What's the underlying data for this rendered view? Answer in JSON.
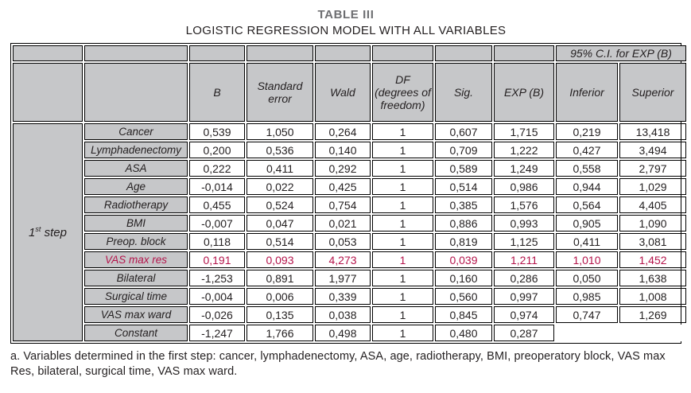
{
  "title": "TABLE III",
  "subtitle": "LOGISTIC REGRESSION MODEL WITH ALL VARIABLES",
  "colors": {
    "header_bg": "#c6c7c9",
    "highlight": "#b5144b",
    "title_gray": "#6d6e71"
  },
  "table": {
    "ci_header": "95% C.I. for EXP (B)",
    "step": {
      "prefix": "1",
      "sup": "st",
      "suffix": " step"
    },
    "columns": [
      "B",
      "Standard error",
      "Wald",
      "DF (degrees of freedom)",
      "Sig.",
      "EXP (B)",
      "Inferior",
      "Superior"
    ],
    "rows": [
      {
        "variable": "Cancer",
        "highlight": false,
        "values": [
          "0,539",
          "1,050",
          "0,264",
          "1",
          "0,607",
          "1,715",
          "0,219",
          "13,418"
        ]
      },
      {
        "variable": "Lymphadenectomy",
        "highlight": false,
        "values": [
          "0,200",
          "0,536",
          "0,140",
          "1",
          "0,709",
          "1,222",
          "0,427",
          "3,494"
        ]
      },
      {
        "variable": "ASA",
        "highlight": false,
        "values": [
          "0,222",
          "0,411",
          "0,292",
          "1",
          "0,589",
          "1,249",
          "0,558",
          "2,797"
        ]
      },
      {
        "variable": "Age",
        "highlight": false,
        "values": [
          "-0,014",
          "0,022",
          "0,425",
          "1",
          "0,514",
          "0,986",
          "0,944",
          "1,029"
        ]
      },
      {
        "variable": "Radiotherapy",
        "highlight": false,
        "values": [
          "0,455",
          "0,524",
          "0,754",
          "1",
          "0,385",
          "1,576",
          "0,564",
          "4,405"
        ]
      },
      {
        "variable": "BMI",
        "highlight": false,
        "values": [
          "-0,007",
          "0,047",
          "0,021",
          "1",
          "0,886",
          "0,993",
          "0,905",
          "1,090"
        ]
      },
      {
        "variable": "Preop. block",
        "highlight": false,
        "values": [
          "0,118",
          "0,514",
          "0,053",
          "1",
          "0,819",
          "1,125",
          "0,411",
          "3,081"
        ]
      },
      {
        "variable": "VAS max res",
        "highlight": true,
        "values": [
          "0,191",
          "0,093",
          "4,273",
          "1",
          "0,039",
          "1,211",
          "1,010",
          "1,452"
        ]
      },
      {
        "variable": "Bilateral",
        "highlight": false,
        "values": [
          "-1,253",
          "0,891",
          "1,977",
          "1",
          "0,160",
          "0,286",
          "0,050",
          "1,638"
        ]
      },
      {
        "variable": "Surgical time",
        "highlight": false,
        "values": [
          "-0,004",
          "0,006",
          "0,339",
          "1",
          "0,560",
          "0,997",
          "0,985",
          "1,008"
        ]
      },
      {
        "variable": "VAS max ward",
        "highlight": false,
        "values": [
          "-0,026",
          "0,135",
          "0,038",
          "1",
          "0,845",
          "0,974",
          "0,747",
          "1,269"
        ]
      },
      {
        "variable": "Constant",
        "highlight": false,
        "values": [
          "-1,247",
          "1,766",
          "0,498",
          "1",
          "0,480",
          "0,287",
          "",
          ""
        ]
      }
    ]
  },
  "footnote": "a. Variables determined in the first step: cancer, lymphadenectomy, ASA, age, radiotherapy, BMI, preoperatory block, VAS max Res, bilateral, surgical time, VAS max ward."
}
